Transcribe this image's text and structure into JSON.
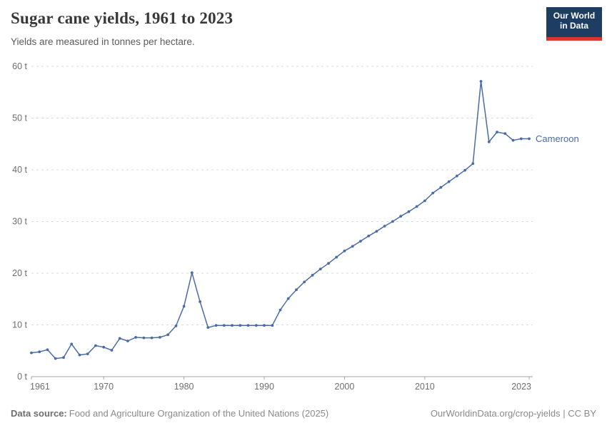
{
  "header": {
    "title": "Sugar cane yields, 1961 to 2023",
    "subtitle": "Yields are measured in tonnes per hectare."
  },
  "logo": {
    "line1": "Our World",
    "line2": "in Data",
    "bg_color": "#1d3d63",
    "accent_color": "#d8352e"
  },
  "chart_data": {
    "type": "line",
    "title": "Sugar cane yields, 1961 to 2023",
    "subtitle": "Yields are measured in tonnes per hectare.",
    "unit": "t",
    "xlim": [
      1961,
      2023
    ],
    "ylim": [
      0,
      60
    ],
    "y_ticks": [
      0,
      10,
      20,
      30,
      40,
      50,
      60
    ],
    "y_tick_suffix": " t",
    "x_ticks": [
      1961,
      1970,
      1980,
      1990,
      2000,
      2010,
      2023
    ],
    "grid": "horizontal-dashed",
    "legend_position": "line-end-label",
    "colors": {
      "grid": "#d9d9d9",
      "axis": "#a3a3a3",
      "tick_label": "#6e6e6e"
    },
    "series": [
      {
        "name": "Cameroon",
        "color": "#4a6ba8",
        "x": [
          1961,
          1962,
          1963,
          1964,
          1965,
          1966,
          1967,
          1968,
          1969,
          1970,
          1971,
          1972,
          1973,
          1974,
          1975,
          1976,
          1977,
          1978,
          1979,
          1980,
          1981,
          1982,
          1983,
          1984,
          1985,
          1986,
          1987,
          1988,
          1989,
          1990,
          1991,
          1992,
          1993,
          1994,
          1995,
          1996,
          1997,
          1998,
          1999,
          2000,
          2001,
          2002,
          2003,
          2004,
          2005,
          2006,
          2007,
          2008,
          2009,
          2010,
          2011,
          2012,
          2013,
          2014,
          2015,
          2016,
          2017,
          2018,
          2019,
          2020,
          2021,
          2022,
          2023
        ],
        "values": [
          4.6,
          4.8,
          5.2,
          3.5,
          3.7,
          6.3,
          4.2,
          4.4,
          6.0,
          5.7,
          5.1,
          7.4,
          6.9,
          7.6,
          7.5,
          7.5,
          7.6,
          8.1,
          9.8,
          13.6,
          20.1,
          14.5,
          9.5,
          9.9,
          9.9,
          9.9,
          9.9,
          9.9,
          9.9,
          9.9,
          9.9,
          12.9,
          15.1,
          16.8,
          18.3,
          19.6,
          20.8,
          21.9,
          23.1,
          24.3,
          25.2,
          26.2,
          27.2,
          28.1,
          29.1,
          30.0,
          31.0,
          31.9,
          32.9,
          34.0,
          35.5,
          36.6,
          37.7,
          38.8,
          39.9,
          41.2,
          57.1,
          45.4,
          47.3,
          47.0,
          45.7,
          46.0,
          46.0
        ]
      }
    ]
  },
  "footer": {
    "source_label": "Data source:",
    "source_text": "Food and Agriculture Organization of the United Nations (2025)",
    "link": "OurWorldinData.org/crop-yields",
    "separator": " | ",
    "license": "CC BY"
  }
}
